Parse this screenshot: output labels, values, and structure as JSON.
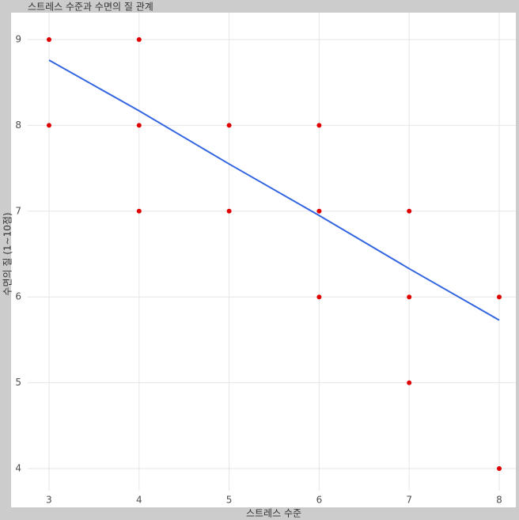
{
  "chart_data": {
    "type": "scatter",
    "title": "스트레스 수준과 수면의 질 관계",
    "x_label": "스트레스 수준",
    "y_label": "수면의 질 (1~10점)",
    "series": [
      {
        "x": [
          3,
          3,
          4,
          4,
          4,
          5,
          5,
          6,
          6,
          6,
          7,
          7,
          7,
          8,
          8
        ],
        "values": [
          9,
          8,
          9,
          8,
          7,
          8,
          7,
          8,
          7,
          6,
          7,
          6,
          5,
          6,
          4
        ],
        "color": "#e00000"
      }
    ],
    "trend_line": {
      "x": [
        3,
        4,
        5,
        6,
        7,
        8
      ],
      "values": [
        8.76,
        8.17,
        7.55,
        6.95,
        6.33,
        5.73
      ],
      "color": "#3366e0"
    },
    "xlim": [
      2.75,
      8.25
    ],
    "ylim": [
      3.75,
      9.25
    ],
    "xticks": [
      3,
      4,
      5,
      6,
      7,
      8
    ],
    "yticks": [
      4,
      5,
      6,
      7,
      8,
      9
    ],
    "grid": true
  }
}
